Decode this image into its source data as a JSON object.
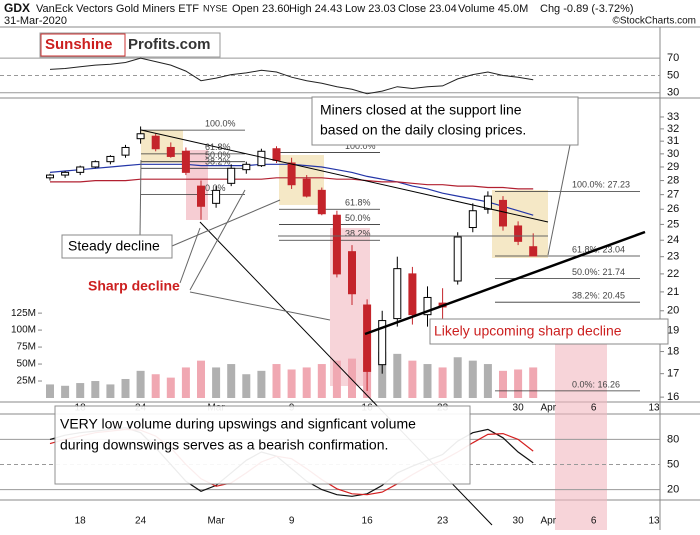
{
  "header": {
    "symbol": "GDX",
    "name": "VanEck Vectors Gold Miners ETF",
    "exchange": "NYSE",
    "date": "31-Mar-2020",
    "quote": [
      "Open 23.60",
      "High 24.43",
      "Low 23.03",
      "Close 23.04",
      "Volume 45.0M",
      "Chg -0.89 (-3.72%)"
    ],
    "source": "©StockCharts.com",
    "logo": [
      "Sunshine",
      "Profits.com"
    ]
  },
  "annotations": {
    "miners": [
      "Miners closed at the support line",
      "based on the daily closing prices."
    ],
    "steady": "Steady decline",
    "sharp": "Sharp decline",
    "upcoming": "Likely upcoming sharp decline",
    "volume": [
      "VERY low volume during upswings and signficant volume",
      "during downswings serves as a bearish confirmation."
    ]
  },
  "chart_data": {
    "type": "candlestick",
    "categories": [
      null,
      null,
      "18",
      null,
      null,
      null,
      "24",
      null,
      null,
      null,
      null,
      "Mar",
      null,
      null,
      null,
      null,
      "9",
      null,
      null,
      null,
      null,
      "16",
      null,
      null,
      null,
      null,
      "23",
      null,
      null,
      null,
      null,
      "30",
      null,
      "Apr",
      null,
      null,
      "6",
      null,
      null,
      null,
      "13"
    ],
    "open": [
      28.2,
      28.4,
      28.6,
      29.0,
      29.4,
      29.9,
      31.2,
      31.4,
      30.5,
      30.2,
      27.6,
      26.4,
      27.8,
      28.8,
      29.1,
      30.4,
      29.3,
      28.1,
      27.3,
      25.6,
      23.3,
      20.3,
      17.4,
      19.6,
      22.0,
      19.8,
      20.4,
      21.6,
      24.8,
      26.0,
      26.6,
      24.9,
      23.6,
      null,
      null,
      null,
      null,
      null,
      null,
      null,
      null
    ],
    "high": [
      28.5,
      28.7,
      29.1,
      29.5,
      29.9,
      30.7,
      32.2,
      31.6,
      30.9,
      30.5,
      28.0,
      27.6,
      29.2,
      29.4,
      30.4,
      30.6,
      29.7,
      28.4,
      27.5,
      25.9,
      23.7,
      20.6,
      20.0,
      23.0,
      22.4,
      21.3,
      21.2,
      24.5,
      26.4,
      27.23,
      26.9,
      25.2,
      24.43,
      null,
      null,
      null,
      null,
      null,
      null,
      null,
      null
    ],
    "low": [
      28.0,
      28.2,
      28.4,
      28.9,
      29.2,
      29.7,
      30.8,
      30.2,
      29.7,
      28.4,
      25.3,
      26.1,
      27.6,
      28.5,
      29.0,
      29.3,
      27.4,
      26.8,
      25.6,
      21.8,
      20.3,
      16.26,
      17.0,
      19.2,
      19.3,
      19.2,
      19.6,
      21.4,
      24.5,
      25.7,
      24.6,
      23.7,
      23.03,
      null,
      null,
      null,
      null,
      null,
      null,
      null,
      null
    ],
    "close": [
      28.4,
      28.6,
      29.0,
      29.4,
      29.8,
      30.5,
      31.6,
      30.4,
      29.8,
      28.6,
      26.2,
      27.3,
      28.9,
      29.2,
      30.2,
      29.5,
      27.7,
      26.9,
      25.7,
      22.0,
      20.9,
      17.1,
      19.5,
      22.3,
      19.8,
      20.7,
      20.2,
      24.2,
      25.9,
      26.9,
      24.9,
      23.93,
      23.04,
      null,
      null,
      null,
      null,
      null,
      null,
      null,
      null
    ],
    "up_color": "#ffffff",
    "down_color": "#c4242b",
    "ylim": [
      15.8,
      33.6
    ],
    "log_scale": true,
    "yticks": [
      16,
      17,
      18,
      19,
      20,
      21,
      22,
      23,
      24,
      25,
      26,
      27,
      28,
      29,
      30,
      31,
      32,
      33
    ],
    "overlays": [
      {
        "color": "#2436a8",
        "values": [
          28.6,
          28.7,
          28.8,
          28.9,
          29.0,
          29.1,
          29.2,
          29.2,
          29.2,
          29.2,
          29.1,
          29.1,
          29.1,
          29.1,
          29.2,
          29.2,
          29.2,
          29.1,
          29.0,
          28.8,
          28.6,
          28.3,
          28.1,
          27.9,
          27.6,
          27.4,
          27.1,
          26.9,
          26.7,
          26.5,
          26.2,
          25.9,
          25.6,
          null,
          null,
          null,
          null,
          null,
          null,
          null,
          null
        ]
      },
      {
        "color": "#b22030",
        "values": [
          27.9,
          27.9,
          27.9,
          28.0,
          28.0,
          28.0,
          28.1,
          28.1,
          28.1,
          28.1,
          28.1,
          28.1,
          28.1,
          28.1,
          28.1,
          28.2,
          28.2,
          28.2,
          28.2,
          28.1,
          28.1,
          28.0,
          27.9,
          27.9,
          27.8,
          27.7,
          27.7,
          27.6,
          27.6,
          27.5,
          27.5,
          27.4,
          27.4,
          null,
          null,
          null,
          null,
          null,
          null,
          null,
          null
        ]
      }
    ],
    "volume": [
      20000000,
      18000000,
      22000000,
      25000000,
      20000000,
      28000000,
      40000000,
      35000000,
      30000000,
      45000000,
      55000000,
      45000000,
      50000000,
      35000000,
      40000000,
      50000000,
      42000000,
      45000000,
      50000000,
      55000000,
      58000000,
      60000000,
      68000000,
      65000000,
      55000000,
      50000000,
      45000000,
      60000000,
      55000000,
      50000000,
      40000000,
      42000000,
      45000000,
      null,
      null,
      null,
      null,
      null,
      null,
      null,
      null
    ],
    "volume_up_color": "#b0b0b0",
    "volume_down_color": "#f0a8b2",
    "volume_ylim": [
      0,
      430000000
    ],
    "volume_yticks": [
      {
        "value": 25000000,
        "label": "25M"
      },
      {
        "value": 50000000,
        "label": "50M"
      },
      {
        "value": 75000000,
        "label": "75M"
      },
      {
        "value": 100000000,
        "label": "100M"
      },
      {
        "value": 125000000,
        "label": "125M"
      }
    ],
    "rsi": {
      "color": "#222222",
      "ylim": [
        24,
        84
      ],
      "yticks": [
        30,
        50,
        70
      ],
      "values": [
        57,
        58,
        60,
        62,
        63,
        65,
        70,
        66,
        62,
        55,
        44,
        47,
        51,
        53,
        56,
        54,
        48,
        44,
        41,
        37,
        34,
        29,
        32,
        37,
        35,
        37,
        38,
        46,
        51,
        54,
        50,
        48,
        45,
        null,
        null,
        null,
        null,
        null,
        null,
        null,
        null
      ]
    },
    "stoch": {
      "ylim": [
        10,
        108
      ],
      "yticks": [
        20,
        50,
        80
      ],
      "series": [
        {
          "color": "#111111",
          "values": [
            80,
            85,
            88,
            90,
            92,
            94,
            88,
            70,
            50,
            30,
            18,
            25,
            40,
            55,
            65,
            60,
            45,
            30,
            20,
            14,
            12,
            15,
            25,
            40,
            48,
            55,
            62,
            78,
            88,
            92,
            82,
            65,
            52,
            null,
            null,
            null,
            null,
            null,
            null,
            null,
            null
          ]
        },
        {
          "color": "#d42020",
          "values": [
            75,
            80,
            84,
            88,
            90,
            92,
            91,
            84,
            70,
            50,
            33,
            24,
            28,
            40,
            53,
            60,
            57,
            45,
            32,
            21,
            15,
            14,
            17,
            27,
            38,
            48,
            55,
            65,
            76,
            86,
            87,
            80,
            66,
            null,
            null,
            null,
            null,
            null,
            null,
            null,
            null
          ]
        }
      ]
    },
    "fibs": [
      {
        "levels": [
          {
            "value": 31.9,
            "label": "100.0%"
          },
          {
            "value": 30.0,
            "label": "61.8%"
          },
          {
            "value": 29.4,
            "label": "50.0%"
          },
          {
            "value": 28.9,
            "label": "38.2%"
          },
          {
            "value": 27.0,
            "label": "0.0%"
          }
        ]
      },
      {
        "levels": [
          {
            "value": 30.1,
            "label": "100.0%"
          },
          {
            "value": 26.0,
            "label": "61.8%"
          },
          {
            "value": 25.0,
            "label": "50.0%"
          },
          {
            "value": 24.0,
            "label": "38.2%"
          }
        ]
      },
      {
        "levels": [
          {
            "value": 27.23,
            "label": "100.0%: 27.23"
          },
          {
            "value": 23.04,
            "label": "61.8%: 23.04"
          },
          {
            "value": 21.74,
            "label": "50.0%: 21.74"
          },
          {
            "value": 20.45,
            "label": "38.2%: 20.45"
          },
          {
            "value": 16.26,
            "label": "0.0%: 16.26"
          }
        ]
      }
    ]
  }
}
